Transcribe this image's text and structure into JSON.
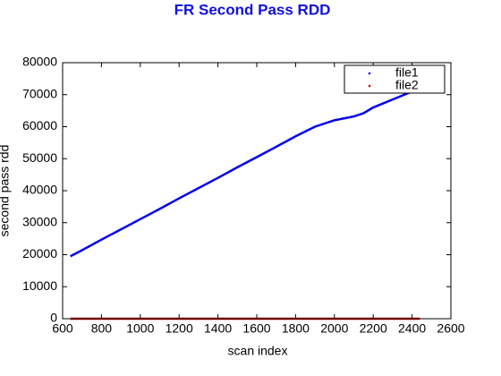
{
  "chart_data": {
    "type": "scatter",
    "title": "FR Second Pass RDD",
    "xlabel": "scan index",
    "ylabel": "second pass rdd",
    "x": [
      640,
      700,
      800,
      900,
      1000,
      1100,
      1200,
      1300,
      1400,
      1500,
      1600,
      1700,
      1800,
      1900,
      2000,
      2100,
      2150,
      2200,
      2300,
      2400,
      2440
    ],
    "series": [
      {
        "name": "file1",
        "color": "#0000ee",
        "values": [
          19500,
          21400,
          24700,
          27900,
          31100,
          34300,
          37600,
          40800,
          44000,
          47300,
          50500,
          53700,
          57000,
          60000,
          62000,
          63200,
          64200,
          66000,
          68500,
          71000,
          72000
        ]
      },
      {
        "name": "file2",
        "color": "#cc0000",
        "values": [
          0,
          0,
          0,
          0,
          0,
          0,
          0,
          0,
          0,
          0,
          0,
          0,
          0,
          0,
          0,
          0,
          0,
          0,
          0,
          0,
          0
        ]
      }
    ],
    "xlim": [
      600,
      2600
    ],
    "xticks": [
      600,
      800,
      1000,
      1200,
      1400,
      1600,
      1800,
      2000,
      2200,
      2400,
      2600
    ],
    "ylim": [
      0,
      80000
    ],
    "yticks": [
      0,
      10000,
      20000,
      30000,
      40000,
      50000,
      60000,
      70000,
      80000
    ],
    "grid": false,
    "legend": "upper right"
  }
}
